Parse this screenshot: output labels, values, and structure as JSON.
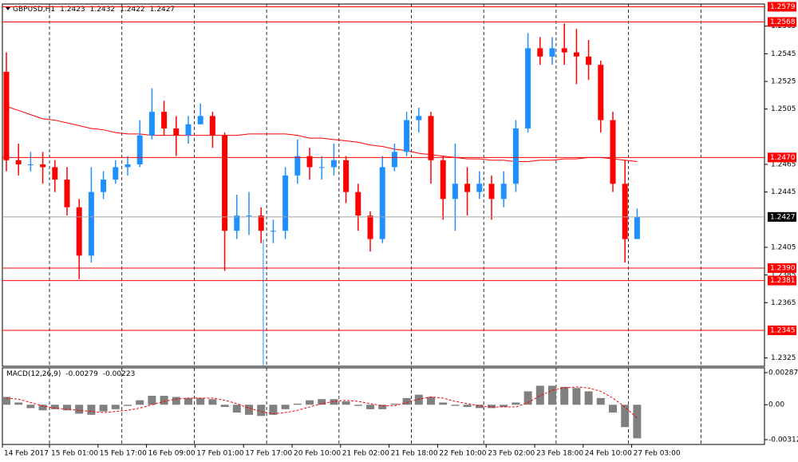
{
  "chart_data": [
    {
      "type": "candlestick",
      "title": "GBPUSD,H1",
      "header_values": [
        1.2423,
        1.2432,
        1.2422,
        1.2427
      ],
      "bull_color": "#1e90ff",
      "bear_color": "#ff0000",
      "ma_color": "#ff0000",
      "level_color": "#ff0000",
      "ylim": [
        1.2319,
        1.2581
      ],
      "yticks": [
        1.2565,
        1.2545,
        1.2525,
        1.2505,
        1.2465,
        1.2445,
        1.2405,
        1.2385,
        1.2365,
        1.2325
      ],
      "levels": [
        1.2579,
        1.2568,
        {
          "value": 1.247,
          "label": "1.2470"
        },
        {
          "value": 1.239,
          "label": "1.2390"
        },
        1.2381,
        1.2345
      ],
      "last": 1.2427,
      "xticks": [
        "14 Feb 2017",
        "15 Feb 01:00",
        "15 Feb 17:00",
        "16 Feb 09:00",
        "17 Feb 01:00",
        "17 Feb 17:00",
        "20 Feb 10:00",
        "21 Feb 02:00",
        "21 Feb 18:00",
        "22 Feb 10:00",
        "23 Feb 02:00",
        "23 Feb 18:00",
        "24 Feb 10:00",
        "27 Feb 03:00"
      ],
      "candles": [
        [
          1.2532,
          1.2546,
          1.246,
          1.2468
        ],
        [
          1.2468,
          1.248,
          1.2457,
          1.2465
        ],
        [
          1.2465,
          1.2474,
          1.246,
          1.2465
        ],
        [
          1.2465,
          1.2474,
          1.2451,
          1.2463
        ],
        [
          1.2463,
          1.2468,
          1.2445,
          1.2454
        ],
        [
          1.2454,
          1.2463,
          1.2428,
          1.2434
        ],
        [
          1.2434,
          1.244,
          1.2382,
          1.2399
        ],
        [
          1.2399,
          1.2463,
          1.2394,
          1.2445
        ],
        [
          1.2445,
          1.246,
          1.244,
          1.2454
        ],
        [
          1.2454,
          1.2468,
          1.2451,
          1.2463
        ],
        [
          1.2463,
          1.2471,
          1.2457,
          1.2465
        ],
        [
          1.2465,
          1.2497,
          1.2463,
          1.2486
        ],
        [
          1.2486,
          1.252,
          1.2483,
          1.2503
        ],
        [
          1.2503,
          1.2511,
          1.2486,
          1.2491
        ],
        [
          1.2491,
          1.25,
          1.2471,
          1.2486
        ],
        [
          1.2486,
          1.25,
          1.248,
          1.2494
        ],
        [
          1.2494,
          1.2509,
          1.2494,
          1.25
        ],
        [
          1.25,
          1.2503,
          1.2477,
          1.2486
        ],
        [
          1.2486,
          1.2488,
          1.2388,
          1.2417
        ],
        [
          1.2417,
          1.2443,
          1.2411,
          1.2428
        ],
        [
          1.2428,
          1.2445,
          1.2414,
          1.2428
        ],
        [
          1.2428,
          1.2434,
          1.2408,
          1.2417
        ],
        [
          1.2417,
          1.2425,
          1.2408,
          1.2417
        ],
        [
          1.2417,
          1.2463,
          1.2411,
          1.2457
        ],
        [
          1.2457,
          1.2483,
          1.2451,
          1.2471
        ],
        [
          1.2471,
          1.2477,
          1.2454,
          1.2463
        ],
        [
          1.2463,
          1.2471,
          1.2454,
          1.2463
        ],
        [
          1.2463,
          1.248,
          1.2457,
          1.2468
        ],
        [
          1.2468,
          1.2471,
          1.2437,
          1.2445
        ],
        [
          1.2445,
          1.2451,
          1.2417,
          1.2428
        ],
        [
          1.2428,
          1.2431,
          1.2402,
          1.2411
        ],
        [
          1.2411,
          1.2471,
          1.2408,
          1.2463
        ],
        [
          1.2463,
          1.248,
          1.246,
          1.2474
        ],
        [
          1.2474,
          1.2503,
          1.2471,
          1.2497
        ],
        [
          1.2497,
          1.2506,
          1.2488,
          1.25
        ],
        [
          1.25,
          1.2503,
          1.2451,
          1.2468
        ],
        [
          1.2468,
          1.2471,
          1.2425,
          1.244
        ],
        [
          1.244,
          1.248,
          1.2417,
          1.2451
        ],
        [
          1.2451,
          1.2463,
          1.2428,
          1.2445
        ],
        [
          1.2445,
          1.246,
          1.244,
          1.2451
        ],
        [
          1.2451,
          1.2457,
          1.2425,
          1.244
        ],
        [
          1.244,
          1.246,
          1.2434,
          1.2451
        ],
        [
          1.2451,
          1.2497,
          1.2445,
          1.2491
        ],
        [
          1.2491,
          1.256,
          1.2488,
          1.2549
        ],
        [
          1.2549,
          1.2557,
          1.2537,
          1.2543
        ],
        [
          1.2543,
          1.2557,
          1.2537,
          1.2549
        ],
        [
          1.2549,
          1.2567,
          1.2537,
          1.2546
        ],
        [
          1.2546,
          1.2563,
          1.2523,
          1.2543
        ],
        [
          1.2543,
          1.2555,
          1.2526,
          1.2537
        ],
        [
          1.2537,
          1.254,
          1.2488,
          1.2497
        ],
        [
          1.2497,
          1.2503,
          1.2445,
          1.2451
        ],
        [
          1.2451,
          1.2468,
          1.2394,
          1.2411
        ],
        [
          1.2411,
          1.2433,
          1.2411,
          1.2427
        ]
      ],
      "ma": [
        1.2507,
        1.2504,
        1.2501,
        1.2498,
        1.2497,
        1.2495,
        1.2493,
        1.2491,
        1.249,
        1.2488,
        1.2487,
        1.2487,
        1.2486,
        1.2486,
        1.2486,
        1.2486,
        1.2486,
        1.2486,
        1.2486,
        1.2486,
        1.2487,
        1.2487,
        1.2487,
        1.2487,
        1.2486,
        1.2484,
        1.2484,
        1.2483,
        1.2482,
        1.2481,
        1.2479,
        1.2478,
        1.2476,
        1.2475,
        1.2473,
        1.2472,
        1.2471,
        1.247,
        1.2469,
        1.2469,
        1.2468,
        1.2468,
        1.2467,
        1.2467,
        1.2468,
        1.2468,
        1.2469,
        1.2469,
        1.247,
        1.247,
        1.2469,
        1.2468,
        1.2467
      ]
    },
    {
      "type": "bar",
      "title": "MACD(12,26,9)",
      "header_values": [
        -0.00279,
        -0.00223
      ],
      "color": "#808080",
      "signal_color": "#ff0000",
      "ylim": [
        -0.00355,
        0.0033
      ],
      "yticks": [
        0.00287,
        {
          "value": 0,
          "label": "0.00"
        },
        -0.00312
      ],
      "values": [
        0.0007,
        0.0002,
        -0.0003,
        -0.0005,
        -0.0004,
        -0.0005,
        -0.0008,
        -0.0009,
        -0.0006,
        -0.0004,
        -0.0001,
        0.0004,
        0.0008,
        0.0008,
        0.0007,
        0.0006,
        0.0006,
        0.0005,
        -0.0002,
        -0.0007,
        -0.0009,
        -0.001,
        -0.0009,
        -0.0004,
        0.0001,
        0.0004,
        0.0005,
        0.0005,
        0.0003,
        -0.0001,
        -0.0004,
        -0.0004,
        0.0001,
        0.0006,
        0.0009,
        0.0007,
        0.0002,
        -0.0001,
        -0.0002,
        -0.0003,
        -0.0003,
        -0.0002,
        0.0002,
        0.0012,
        0.0017,
        0.0017,
        0.0016,
        0.0015,
        0.0012,
        0.0006,
        -0.0007,
        -0.002,
        -0.003
      ],
      "signal": [
        0.0006,
        0.0005,
        0.0002,
        -0.0001,
        -0.0003,
        -0.0004,
        -0.0005,
        -0.0006,
        -0.0007,
        -0.0006,
        -0.0005,
        -0.0003,
        0,
        0.0003,
        0.0005,
        0.0006,
        0.0006,
        0.0006,
        0.0004,
        0.0001,
        -0.0003,
        -0.0006,
        -0.0008,
        -0.0007,
        -0.0005,
        -0.0002,
        0.0001,
        0.0003,
        0.0004,
        0.0003,
        0.0001,
        -0.0001,
        -0.0001,
        0.0002,
        0.0005,
        0.0007,
        0.0006,
        0.0003,
        0.0001,
        -0.0001,
        -0.0002,
        -0.0002,
        -0.0002,
        0.0002,
        0.0008,
        0.0013,
        0.0015,
        0.0016,
        0.0015,
        0.0012,
        0.0006,
        -0.0002,
        -0.0012
      ]
    }
  ]
}
